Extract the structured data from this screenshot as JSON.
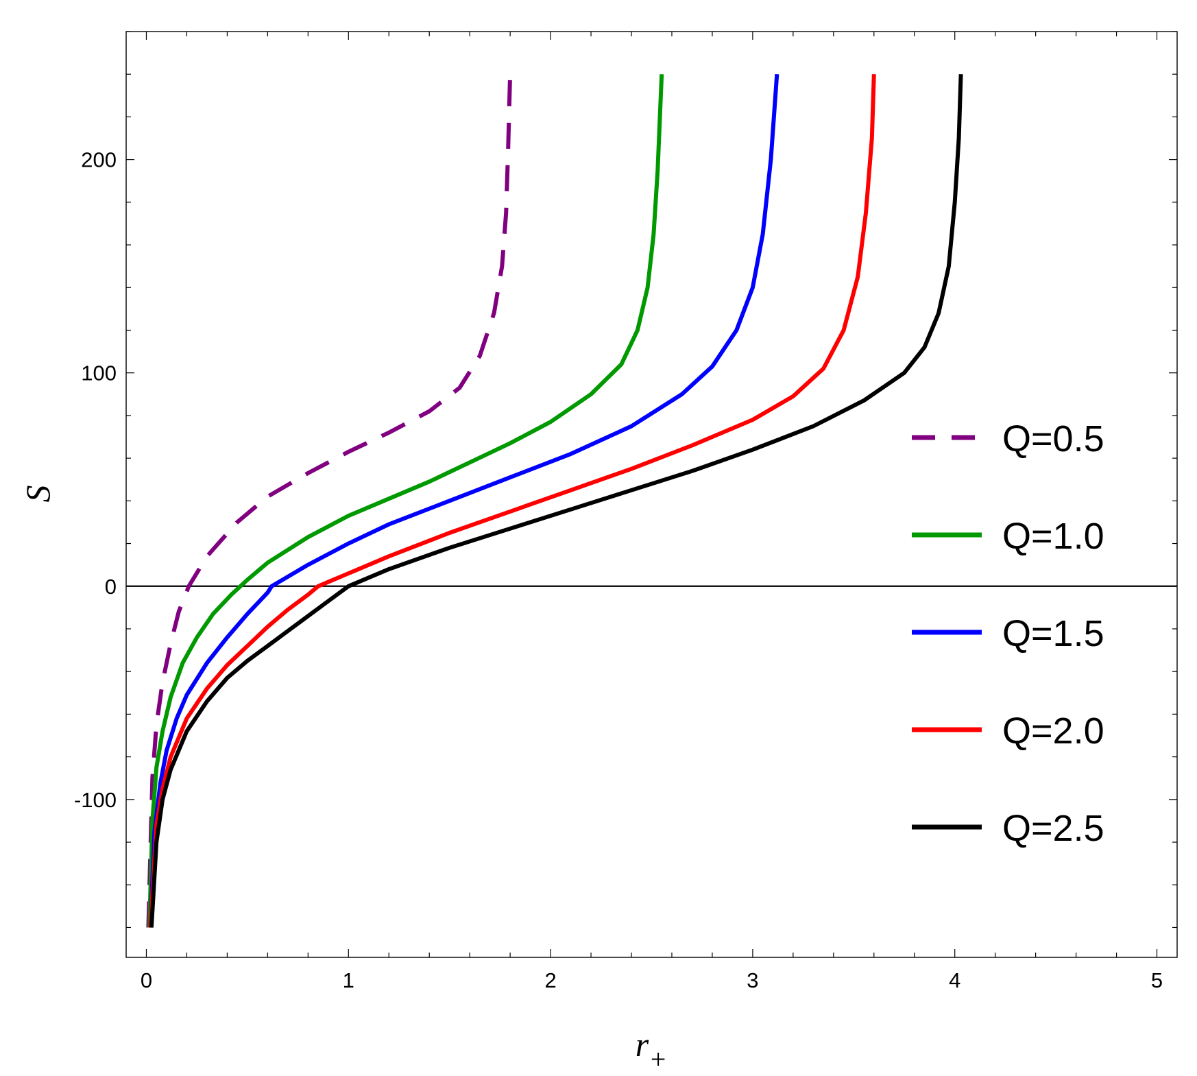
{
  "chart_data": {
    "type": "line",
    "title": "",
    "xlabel": "r",
    "xlabel_subscript": "+",
    "ylabel": "S",
    "xlim": [
      -0.1,
      5.1
    ],
    "ylim": [
      -174,
      260
    ],
    "xticks": [
      0,
      1,
      2,
      3,
      4,
      5
    ],
    "yticks": [
      -100,
      0,
      100,
      200
    ],
    "tick_labels_x": [
      "0",
      "1",
      "2",
      "3",
      "4",
      "5"
    ],
    "tick_labels_y": [
      "-100",
      "0",
      "100",
      "200"
    ],
    "zero_line": true,
    "grid": false,
    "legend_position": "right",
    "series": [
      {
        "name": "Q=0.5",
        "color": "#800080",
        "style": "dashed",
        "points": [
          [
            0.01,
            -160
          ],
          [
            0.03,
            -90
          ],
          [
            0.05,
            -65
          ],
          [
            0.08,
            -45
          ],
          [
            0.12,
            -27
          ],
          [
            0.16,
            -12
          ],
          [
            0.21,
            0
          ],
          [
            0.3,
            14
          ],
          [
            0.45,
            30
          ],
          [
            0.6,
            42
          ],
          [
            0.8,
            53
          ],
          [
            1.0,
            63
          ],
          [
            1.2,
            72
          ],
          [
            1.4,
            82
          ],
          [
            1.55,
            93
          ],
          [
            1.65,
            108
          ],
          [
            1.72,
            128
          ],
          [
            1.76,
            150
          ],
          [
            1.78,
            175
          ],
          [
            1.79,
            205
          ],
          [
            1.8,
            240
          ]
        ]
      },
      {
        "name": "Q=1.0",
        "color": "#009900",
        "style": "solid",
        "points": [
          [
            0.015,
            -160
          ],
          [
            0.03,
            -110
          ],
          [
            0.05,
            -85
          ],
          [
            0.08,
            -68
          ],
          [
            0.12,
            -52
          ],
          [
            0.18,
            -36
          ],
          [
            0.25,
            -24
          ],
          [
            0.33,
            -13
          ],
          [
            0.42,
            -4
          ],
          [
            0.5,
            3
          ],
          [
            0.6,
            11
          ],
          [
            0.8,
            23
          ],
          [
            1.0,
            33
          ],
          [
            1.2,
            41
          ],
          [
            1.4,
            49
          ],
          [
            1.6,
            58
          ],
          [
            1.8,
            67
          ],
          [
            2.0,
            77
          ],
          [
            2.2,
            90
          ],
          [
            2.35,
            104
          ],
          [
            2.43,
            120
          ],
          [
            2.48,
            140
          ],
          [
            2.51,
            165
          ],
          [
            2.53,
            195
          ],
          [
            2.55,
            240
          ]
        ]
      },
      {
        "name": "Q=1.5",
        "color": "#0000ff",
        "style": "solid",
        "points": [
          [
            0.02,
            -160
          ],
          [
            0.04,
            -115
          ],
          [
            0.07,
            -92
          ],
          [
            0.1,
            -77
          ],
          [
            0.15,
            -62
          ],
          [
            0.2,
            -51
          ],
          [
            0.3,
            -36
          ],
          [
            0.4,
            -24
          ],
          [
            0.5,
            -13
          ],
          [
            0.6,
            -3
          ],
          [
            0.62,
            0
          ],
          [
            0.8,
            10
          ],
          [
            1.0,
            20
          ],
          [
            1.2,
            29
          ],
          [
            1.5,
            40
          ],
          [
            1.8,
            51
          ],
          [
            2.1,
            62
          ],
          [
            2.4,
            75
          ],
          [
            2.65,
            90
          ],
          [
            2.8,
            103
          ],
          [
            2.92,
            120
          ],
          [
            3.0,
            140
          ],
          [
            3.05,
            165
          ],
          [
            3.09,
            200
          ],
          [
            3.12,
            240
          ]
        ]
      },
      {
        "name": "Q=2.0",
        "color": "#ff0000",
        "style": "solid",
        "points": [
          [
            0.02,
            -160
          ],
          [
            0.05,
            -112
          ],
          [
            0.08,
            -95
          ],
          [
            0.12,
            -80
          ],
          [
            0.2,
            -62
          ],
          [
            0.3,
            -48
          ],
          [
            0.4,
            -37
          ],
          [
            0.5,
            -28
          ],
          [
            0.6,
            -19
          ],
          [
            0.7,
            -11
          ],
          [
            0.8,
            -4
          ],
          [
            0.85,
            0
          ],
          [
            1.0,
            6
          ],
          [
            1.2,
            14
          ],
          [
            1.5,
            25
          ],
          [
            1.8,
            35
          ],
          [
            2.1,
            45
          ],
          [
            2.4,
            55
          ],
          [
            2.7,
            66
          ],
          [
            3.0,
            78
          ],
          [
            3.2,
            89
          ],
          [
            3.35,
            102
          ],
          [
            3.45,
            120
          ],
          [
            3.52,
            145
          ],
          [
            3.56,
            175
          ],
          [
            3.59,
            210
          ],
          [
            3.6,
            240
          ]
        ]
      },
      {
        "name": "Q=2.5",
        "color": "#000000",
        "style": "solid",
        "points": [
          [
            0.025,
            -160
          ],
          [
            0.05,
            -120
          ],
          [
            0.08,
            -100
          ],
          [
            0.12,
            -86
          ],
          [
            0.2,
            -68
          ],
          [
            0.3,
            -54
          ],
          [
            0.4,
            -43
          ],
          [
            0.5,
            -35
          ],
          [
            0.6,
            -28
          ],
          [
            0.7,
            -21
          ],
          [
            0.8,
            -14
          ],
          [
            0.9,
            -7
          ],
          [
            1.0,
            0
          ],
          [
            1.2,
            8
          ],
          [
            1.5,
            18
          ],
          [
            1.8,
            27
          ],
          [
            2.1,
            36
          ],
          [
            2.4,
            45
          ],
          [
            2.7,
            54
          ],
          [
            3.0,
            64
          ],
          [
            3.3,
            75
          ],
          [
            3.55,
            87
          ],
          [
            3.75,
            100
          ],
          [
            3.85,
            112
          ],
          [
            3.92,
            128
          ],
          [
            3.97,
            150
          ],
          [
            4.0,
            180
          ],
          [
            4.02,
            210
          ],
          [
            4.03,
            240
          ]
        ]
      }
    ]
  }
}
